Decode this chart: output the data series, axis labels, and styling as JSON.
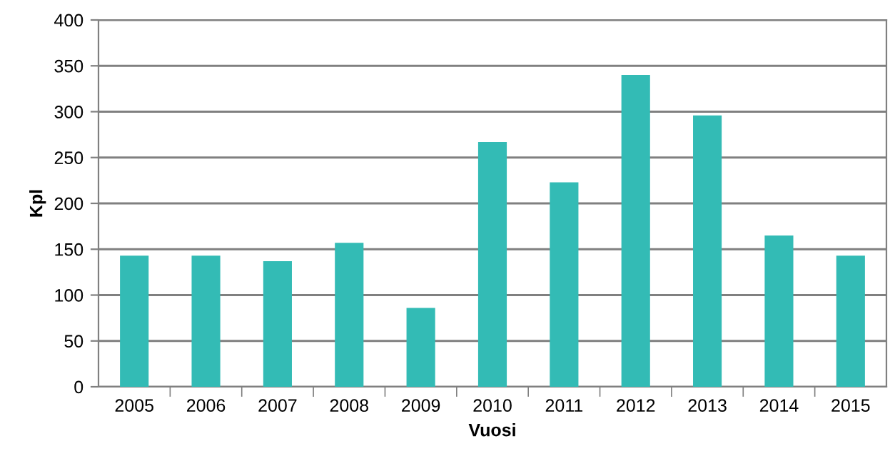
{
  "chart_data": {
    "type": "bar",
    "xlabel": "Vuosi",
    "ylabel": "Kpl",
    "categories": [
      "2005",
      "2006",
      "2007",
      "2008",
      "2009",
      "2010",
      "2011",
      "2012",
      "2013",
      "2014",
      "2015"
    ],
    "values": [
      143,
      143,
      137,
      157,
      86,
      267,
      223,
      340,
      296,
      165,
      143
    ],
    "color": "#33bbb5",
    "ylim": [
      0,
      400
    ],
    "yticks": [
      0,
      50,
      100,
      150,
      200,
      250,
      300,
      350,
      400
    ],
    "grid": "y"
  }
}
